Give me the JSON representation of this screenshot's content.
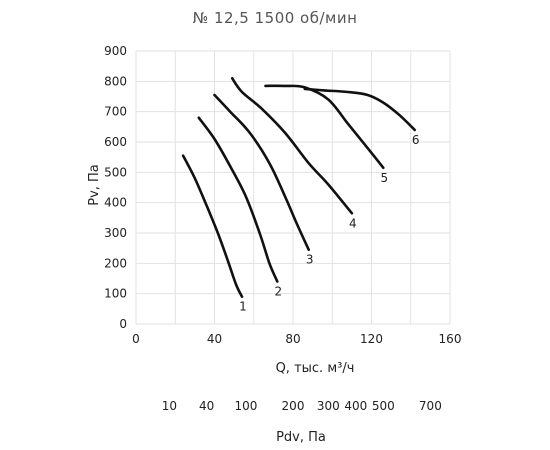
{
  "chart_data": {
    "type": "line",
    "title": "№ 12,5 1500 об/мин",
    "xlabel": "Q, тыс. м³/ч",
    "ylabel": "Pv, Па",
    "xlim": [
      0,
      160
    ],
    "ylim": [
      0,
      900
    ],
    "x_ticks": [
      "0",
      "40",
      "80",
      "120",
      "160"
    ],
    "y_ticks": [
      "0",
      "100",
      "200",
      "300",
      "400",
      "500",
      "600",
      "700",
      "800",
      "900"
    ],
    "grid": true,
    "series": [
      {
        "name": "1",
        "x": [
          24,
          30,
          36,
          42,
          47,
          51,
          54
        ],
        "y": [
          555,
          480,
          390,
          295,
          205,
          130,
          90
        ]
      },
      {
        "name": "2",
        "x": [
          32,
          40,
          48,
          56,
          63,
          68,
          72
        ],
        "y": [
          680,
          610,
          520,
          420,
          300,
          200,
          140
        ]
      },
      {
        "name": "3",
        "x": [
          40,
          48,
          58,
          68,
          76,
          82,
          88
        ],
        "y": [
          755,
          700,
          630,
          530,
          420,
          330,
          245
        ]
      },
      {
        "name": "4",
        "x": [
          49,
          54,
          64,
          76,
          88,
          98,
          110
        ],
        "y": [
          810,
          765,
          710,
          630,
          530,
          460,
          365
        ]
      },
      {
        "name": "5",
        "x": [
          66,
          76,
          86,
          98,
          108,
          118,
          126
        ],
        "y": [
          785,
          785,
          780,
          740,
          660,
          580,
          515
        ]
      },
      {
        "name": "6",
        "x": [
          86,
          96,
          108,
          118,
          126,
          134,
          142
        ],
        "y": [
          775,
          770,
          765,
          755,
          730,
          690,
          640
        ]
      }
    ],
    "secondary_axis": {
      "label": "Pdv, Па",
      "ticks": [
        {
          "label": "10",
          "q": 17
        },
        {
          "label": "40",
          "q": 36
        },
        {
          "label": "100",
          "q": 56
        },
        {
          "label": "200",
          "q": 80
        },
        {
          "label": "300",
          "q": 98
        },
        {
          "label": "400",
          "q": 112
        },
        {
          "label": "500",
          "q": 126
        },
        {
          "label": "700",
          "q": 150
        }
      ]
    }
  }
}
